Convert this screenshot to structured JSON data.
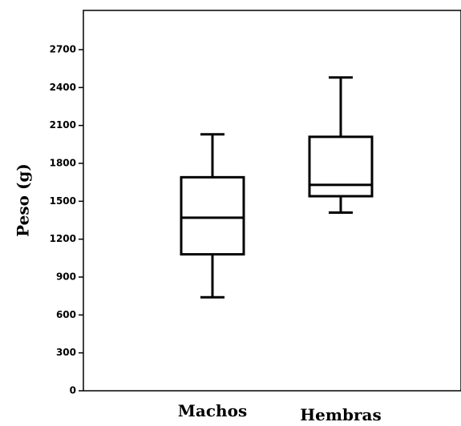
{
  "chart_data": {
    "type": "box",
    "ylabel": "Peso (g)",
    "ylim": [
      0,
      2900
    ],
    "yticks": [
      0,
      300,
      600,
      900,
      1200,
      1500,
      1800,
      2100,
      2400,
      2700
    ],
    "categories": [
      "Machos",
      "Hembras"
    ],
    "boxes": [
      {
        "category": "Machos",
        "min": 740,
        "q1": 1080,
        "median": 1370,
        "q3": 1690,
        "max": 2030
      },
      {
        "category": "Hembras",
        "min": 1410,
        "q1": 1540,
        "median": 1630,
        "q3": 2010,
        "max": 2480
      }
    ]
  }
}
